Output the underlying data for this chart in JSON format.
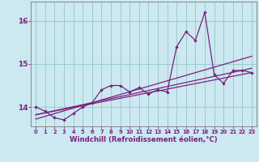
{
  "xlabel": "Windchill (Refroidissement éolien,°C)",
  "ylabel": "",
  "bg_color": "#cce8f0",
  "line_color": "#7b2080",
  "grid_color": "#99cccc",
  "x_values": [
    0,
    1,
    2,
    3,
    4,
    5,
    6,
    7,
    8,
    9,
    10,
    11,
    12,
    13,
    14,
    15,
    16,
    17,
    18,
    19,
    20,
    21,
    22,
    23
  ],
  "series1": [
    14.0,
    13.9,
    13.75,
    13.7,
    13.85,
    14.0,
    14.1,
    14.4,
    14.5,
    14.5,
    14.35,
    14.45,
    14.3,
    14.4,
    14.35,
    15.4,
    15.75,
    15.55,
    16.2,
    14.75,
    14.55,
    14.85,
    14.85,
    14.8
  ],
  "trend1_x": [
    0,
    23
  ],
  "trend1_y": [
    13.82,
    14.8
  ],
  "trend2_x": [
    0,
    23
  ],
  "trend2_y": [
    13.72,
    15.18
  ],
  "trend3_x": [
    0,
    23
  ],
  "trend3_y": [
    13.82,
    14.9
  ],
  "ylim_min": 13.55,
  "ylim_max": 16.45,
  "yticks": [
    14,
    15,
    16
  ],
  "xticks": [
    0,
    1,
    2,
    3,
    4,
    5,
    6,
    7,
    8,
    9,
    10,
    11,
    12,
    13,
    14,
    15,
    16,
    17,
    18,
    19,
    20,
    21,
    22,
    23
  ]
}
